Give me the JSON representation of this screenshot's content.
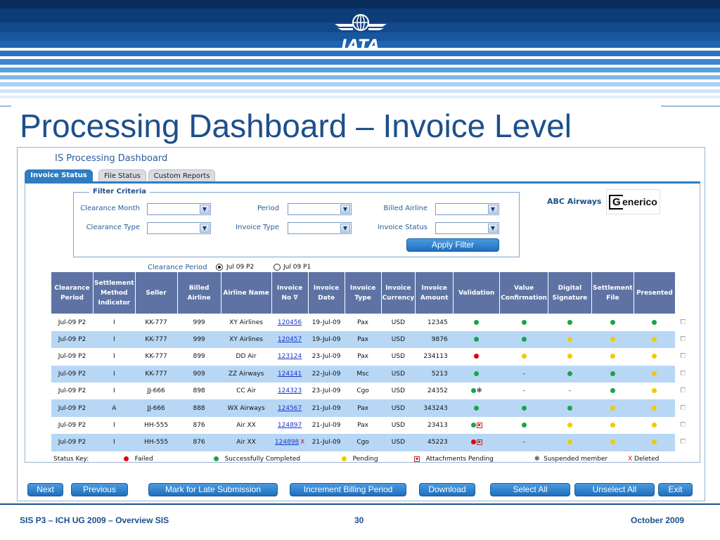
{
  "header": {
    "logo_text": "IATA"
  },
  "slide_title": "Processing Dashboard – Invoice Level",
  "app": {
    "title": "IS Processing Dashboard",
    "tabs": [
      {
        "label": "Invoice Status",
        "active": true
      },
      {
        "label": "File Status",
        "active": false
      },
      {
        "label": "Custom Reports",
        "active": false
      }
    ]
  },
  "filter": {
    "legend": "Filter Criteria",
    "fields": {
      "clearance_month": {
        "label": "Clearance Month",
        "value": ""
      },
      "period": {
        "label": "Period",
        "value": ""
      },
      "billed_airline": {
        "label": "Billed Airline",
        "value": ""
      },
      "clearance_type": {
        "label": "Clearance Type",
        "value": ""
      },
      "invoice_type": {
        "label": "Invoice Type",
        "value": ""
      },
      "invoice_status": {
        "label": "Invoice Status",
        "value": ""
      }
    },
    "apply_label": "Apply Filter"
  },
  "company": {
    "name": "ABC Airways",
    "logo_g": "G",
    "logo_rest": "enerico"
  },
  "clearance_period": {
    "label": "Clearance Period",
    "options": [
      {
        "label": "Jul 09 P2",
        "selected": true
      },
      {
        "label": "Jul 09 P1",
        "selected": false
      }
    ]
  },
  "table": {
    "columns": [
      "Clearance Period",
      "Settlement Method Indicator",
      "Seller",
      "Billed Airline",
      "Airline Name",
      "Invoice No ∇",
      "Invoice Date",
      "Invoice Type",
      "Invoice Currency",
      "Invoice Amount",
      "Validation",
      "Value Confirmation",
      "Digital Signature",
      "Settlement File",
      "Presented"
    ],
    "rows": [
      {
        "period": "Jul-09 P2",
        "smi": "I",
        "seller": "KK-777",
        "billed": "999",
        "airline": "XY Airlines",
        "invoice_no": "120456",
        "deleted": false,
        "date": "19-Jul-09",
        "type": "Pax",
        "currency": "USD",
        "amount": "12345",
        "validation": "green",
        "attachments": false,
        "suspended": false,
        "value_conf": "green",
        "digital_sig": "green",
        "settlement": "green",
        "presented": "green"
      },
      {
        "period": "Jul-09 P2",
        "smi": "I",
        "seller": "KK-777",
        "billed": "999",
        "airline": "XY Airlines",
        "invoice_no": "120457",
        "deleted": false,
        "date": "19-Jul-09",
        "type": "Pax",
        "currency": "USD",
        "amount": "9876",
        "validation": "green",
        "attachments": false,
        "suspended": false,
        "value_conf": "green",
        "digital_sig": "yellow",
        "settlement": "yellow",
        "presented": "yellow"
      },
      {
        "period": "Jul-09 P2",
        "smi": "I",
        "seller": "KK-777",
        "billed": "899",
        "airline": "DD Air",
        "invoice_no": "123124",
        "deleted": false,
        "date": "23-Jul-09",
        "type": "Pax",
        "currency": "USD",
        "amount": "234113",
        "validation": "red",
        "attachments": false,
        "suspended": false,
        "value_conf": "yellow",
        "digital_sig": "yellow",
        "settlement": "yellow",
        "presented": "yellow"
      },
      {
        "period": "Jul-09 P2",
        "smi": "I",
        "seller": "KK-777",
        "billed": "909",
        "airline": "ZZ Airways",
        "invoice_no": "124141",
        "deleted": false,
        "date": "22-Jul-09",
        "type": "Msc",
        "currency": "USD",
        "amount": "5213",
        "validation": "green",
        "attachments": false,
        "suspended": false,
        "value_conf": "-",
        "digital_sig": "green",
        "settlement": "green",
        "presented": "yellow"
      },
      {
        "period": "Jul-09 P2",
        "smi": "I",
        "seller": "JJ-666",
        "billed": "898",
        "airline": "CC Air",
        "invoice_no": "124323",
        "deleted": false,
        "date": "23-Jul-09",
        "type": "Cgo",
        "currency": "USD",
        "amount": "24352",
        "validation": "green",
        "attachments": false,
        "suspended": true,
        "value_conf": "-",
        "digital_sig": "-",
        "settlement": "green",
        "presented": "yellow"
      },
      {
        "period": "Jul-09 P2",
        "smi": "A",
        "seller": "JJ-666",
        "billed": "888",
        "airline": "WX Airways",
        "invoice_no": "124567",
        "deleted": false,
        "date": "21-Jul-09",
        "type": "Pax",
        "currency": "USD",
        "amount": "343243",
        "validation": "green",
        "attachments": false,
        "suspended": false,
        "value_conf": "green",
        "digital_sig": "green",
        "settlement": "yellow",
        "presented": "yellow"
      },
      {
        "period": "Jul-09 P2",
        "smi": "I",
        "seller": "HH-555",
        "billed": "876",
        "airline": "Air XX",
        "invoice_no": "124897",
        "deleted": false,
        "date": "21-Jul-09",
        "type": "Pax",
        "currency": "USD",
        "amount": "23413",
        "validation": "green",
        "attachments": true,
        "suspended": false,
        "value_conf": "green",
        "digital_sig": "yellow",
        "settlement": "yellow",
        "presented": "yellow"
      },
      {
        "period": "Jul-09 P2",
        "smi": "I",
        "seller": "HH-555",
        "billed": "876",
        "airline": "Air XX",
        "invoice_no": "124898",
        "deleted": true,
        "date": "21-Jul-09",
        "type": "Cgo",
        "currency": "USD",
        "amount": "45223",
        "validation": "red",
        "attachments": true,
        "suspended": false,
        "value_conf": "-",
        "digital_sig": "yellow",
        "settlement": "yellow",
        "presented": "yellow"
      }
    ]
  },
  "status_key": {
    "title": "Status Key:",
    "failed": "Failed",
    "success": "Successfully Completed",
    "pending": "Pending",
    "attachments": "Attachments Pending",
    "suspended": "Suspended member",
    "deleted": "Deleted",
    "deleted_mark": "X",
    "suspended_mark": "✻",
    "attach_mark": "▪"
  },
  "buttons": {
    "next": "Next",
    "previous": "Previous",
    "late": "Mark for Late Submission",
    "increment": "Increment Billing Period",
    "download": "Download",
    "select_all": "Select All",
    "unselect_all": "Unselect All",
    "exit": "Exit"
  },
  "footer": {
    "left": "SIS P3 – ICH UG 2009 – Overview SIS",
    "page": "30",
    "right": "October 2009"
  },
  "colors": {
    "green": "#1aa34a",
    "yellow": "#f5c800",
    "red": "#e00000",
    "header_navy": "#0d3d78",
    "title_blue": "#1d4f8c",
    "table_header": "#5e73a4",
    "row_alt": "#b7d7f5"
  }
}
